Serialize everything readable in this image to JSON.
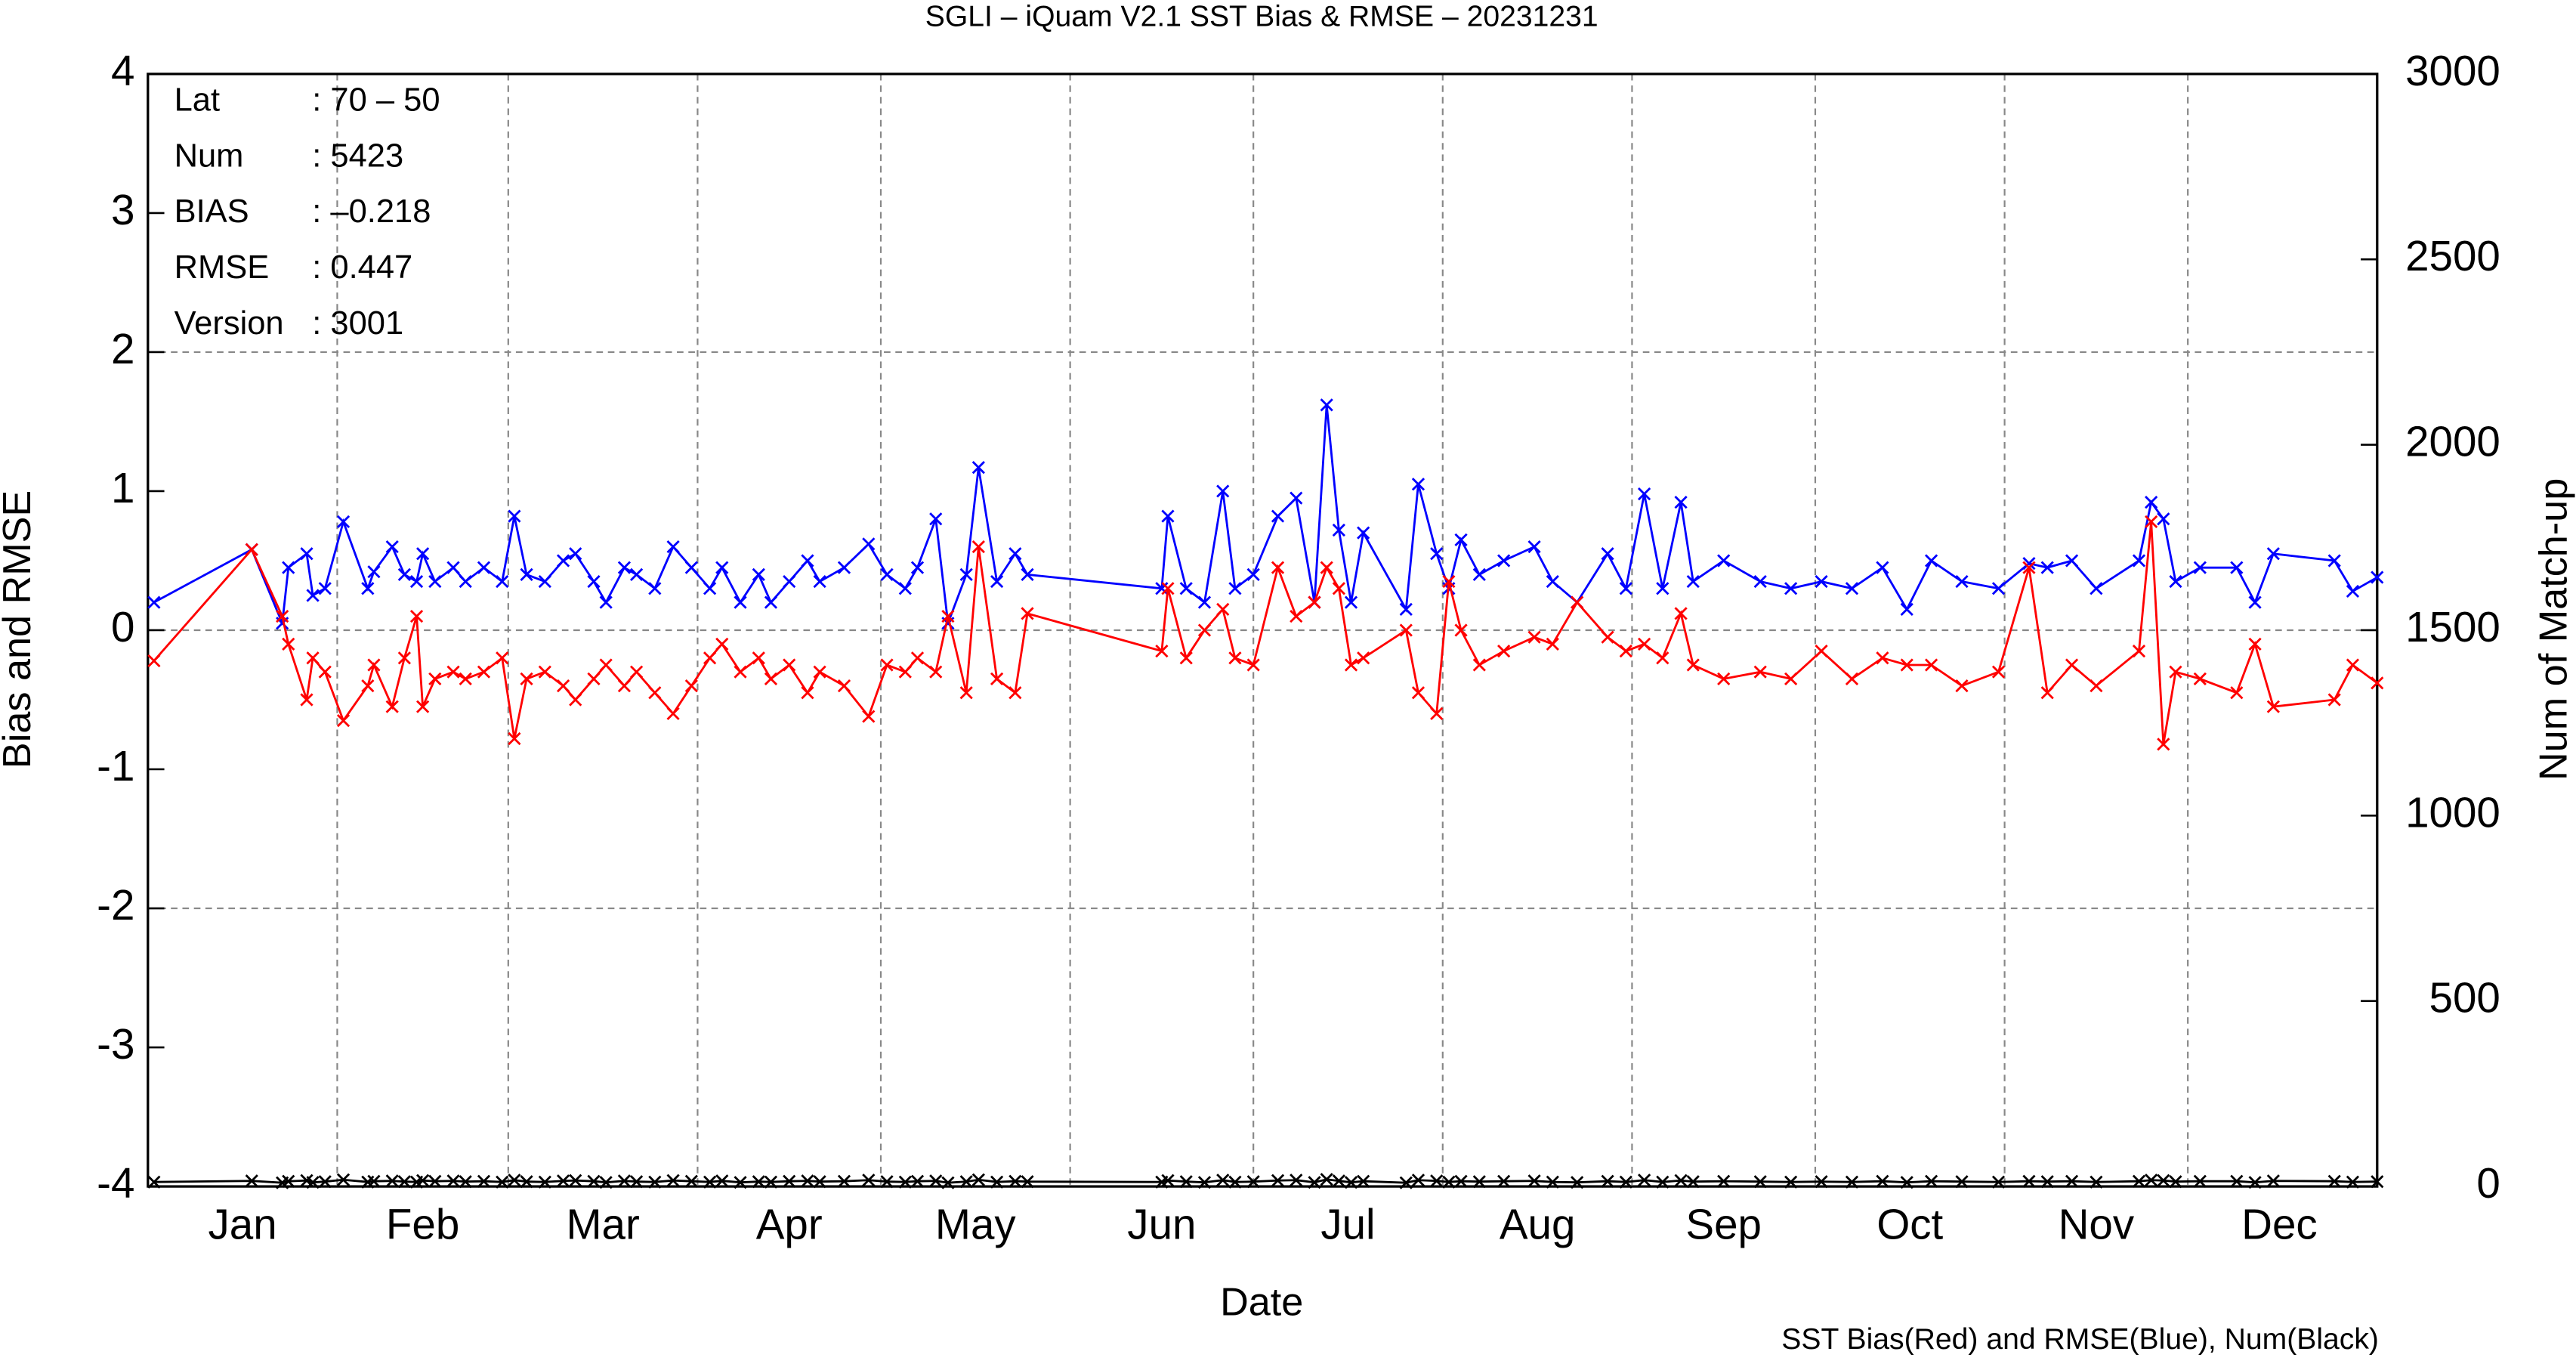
{
  "chart_data": {
    "type": "line",
    "title": "SGLI – iQuam V2.1 SST Bias & RMSE  – 20231231",
    "xlabel": "Date",
    "ylabel": "Bias and RMSE",
    "y2label": "Num of Match-up",
    "footnote": "SST Bias(Red) and RMSE(Blue), Num(Black)",
    "stats": [
      {
        "label": "Lat",
        "value": ": 70 – 50"
      },
      {
        "label": "Num",
        "value": ": 5423"
      },
      {
        "label": "BIAS",
        "value": ": –0.218"
      },
      {
        "label": "RMSE",
        "value": ": 0.447"
      },
      {
        "label": "Version",
        "value": ": 3001"
      }
    ],
    "xlim": [
      0,
      365
    ],
    "xticks": [
      {
        "value": 15.5,
        "label": "Jan"
      },
      {
        "value": 45,
        "label": "Feb"
      },
      {
        "value": 74.5,
        "label": "Mar"
      },
      {
        "value": 105,
        "label": "Apr"
      },
      {
        "value": 135.5,
        "label": "May"
      },
      {
        "value": 166,
        "label": "Jun"
      },
      {
        "value": 196.5,
        "label": "Jul"
      },
      {
        "value": 227.5,
        "label": "Aug"
      },
      {
        "value": 258,
        "label": "Sep"
      },
      {
        "value": 288.5,
        "label": "Oct"
      },
      {
        "value": 319,
        "label": "Nov"
      },
      {
        "value": 349,
        "label": "Dec"
      }
    ],
    "xgrid": [
      31,
      59,
      90,
      120,
      151,
      181,
      212,
      243,
      273,
      304,
      334
    ],
    "ylim": [
      -4,
      4
    ],
    "yticks": [
      -4,
      -3,
      -2,
      -1,
      0,
      1,
      2,
      3,
      4
    ],
    "ygrid": [
      -2,
      0,
      2
    ],
    "y2lim": [
      0,
      3000
    ],
    "y2ticks": [
      0,
      500,
      1000,
      1500,
      2000,
      2500,
      3000
    ],
    "x": [
      1,
      17,
      22,
      23,
      26,
      27,
      29,
      32,
      36,
      37,
      40,
      42,
      44,
      45,
      47,
      50,
      52,
      55,
      58,
      60,
      62,
      65,
      68,
      70,
      73,
      75,
      78,
      80,
      83,
      86,
      89,
      92,
      94,
      97,
      100,
      102,
      105,
      108,
      110,
      114,
      118,
      121,
      124,
      126,
      129,
      131,
      134,
      136,
      139,
      142,
      144,
      166,
      167,
      170,
      173,
      176,
      178,
      181,
      185,
      188,
      191,
      193,
      195,
      197,
      199,
      206,
      208,
      211,
      213,
      215,
      218,
      222,
      227,
      230,
      234,
      239,
      242,
      245,
      248,
      251,
      253,
      258,
      264,
      269,
      274,
      279,
      284,
      288,
      292,
      297,
      303,
      308,
      311,
      315,
      319,
      326,
      328,
      330,
      332,
      336,
      342,
      345,
      348,
      358,
      361,
      365
    ],
    "series": [
      {
        "name": "RMSE",
        "color": "#0000ff",
        "values": [
          0.2,
          0.58,
          0.05,
          0.45,
          0.55,
          0.25,
          0.3,
          0.78,
          0.3,
          0.42,
          0.6,
          0.4,
          0.35,
          0.55,
          0.35,
          0.45,
          0.35,
          0.45,
          0.35,
          0.82,
          0.4,
          0.35,
          0.5,
          0.55,
          0.35,
          0.2,
          0.45,
          0.4,
          0.3,
          0.6,
          0.45,
          0.3,
          0.45,
          0.2,
          0.4,
          0.2,
          0.35,
          0.5,
          0.35,
          0.45,
          0.62,
          0.4,
          0.3,
          0.45,
          0.8,
          0.05,
          0.4,
          1.17,
          0.35,
          0.55,
          0.4,
          0.3,
          0.82,
          0.3,
          0.2,
          1.0,
          0.3,
          0.4,
          0.82,
          0.95,
          0.2,
          1.62,
          0.72,
          0.2,
          0.7,
          0.15,
          1.05,
          0.55,
          0.3,
          0.65,
          0.4,
          0.5,
          0.6,
          0.35,
          0.2,
          0.55,
          0.3,
          0.98,
          0.3,
          0.92,
          0.35,
          0.5,
          0.35,
          0.3,
          0.35,
          0.3,
          0.45,
          0.15,
          0.5,
          0.35,
          0.3,
          0.48,
          0.45,
          0.5,
          0.3,
          0.5,
          0.92,
          0.8,
          0.35,
          0.45,
          0.45,
          0.2,
          0.55,
          0.5,
          0.28,
          0.38
        ]
      },
      {
        "name": "Bias",
        "color": "#ff0000",
        "values": [
          -0.22,
          0.58,
          0.1,
          -0.1,
          -0.5,
          -0.2,
          -0.3,
          -0.65,
          -0.4,
          -0.25,
          -0.55,
          -0.2,
          0.1,
          -0.55,
          -0.35,
          -0.3,
          -0.35,
          -0.3,
          -0.2,
          -0.78,
          -0.35,
          -0.3,
          -0.4,
          -0.5,
          -0.35,
          -0.25,
          -0.4,
          -0.3,
          -0.45,
          -0.6,
          -0.4,
          -0.2,
          -0.1,
          -0.3,
          -0.2,
          -0.35,
          -0.25,
          -0.45,
          -0.3,
          -0.4,
          -0.62,
          -0.25,
          -0.3,
          -0.2,
          -0.3,
          0.1,
          -0.45,
          0.6,
          -0.35,
          -0.45,
          0.12,
          -0.15,
          0.3,
          -0.2,
          0.0,
          0.15,
          -0.2,
          -0.25,
          0.45,
          0.1,
          0.2,
          0.45,
          0.3,
          -0.25,
          -0.2,
          0.0,
          -0.45,
          -0.6,
          0.35,
          0.0,
          -0.25,
          -0.15,
          -0.05,
          -0.1,
          0.2,
          -0.05,
          -0.15,
          -0.1,
          -0.2,
          0.12,
          -0.25,
          -0.35,
          -0.3,
          -0.35,
          -0.15,
          -0.35,
          -0.2,
          -0.25,
          -0.25,
          -0.4,
          -0.3,
          0.45,
          -0.45,
          -0.25,
          -0.4,
          -0.15,
          0.78,
          -0.82,
          -0.3,
          -0.35,
          -0.45,
          -0.1,
          -0.55,
          -0.5,
          -0.25,
          -0.38
        ]
      },
      {
        "name": "Num",
        "color": "#000000",
        "axis": "y2",
        "values": [
          12,
          15,
          10,
          14,
          16,
          11,
          13,
          18,
          12,
          14,
          15,
          13,
          12,
          16,
          14,
          15,
          13,
          14,
          12,
          17,
          13,
          12,
          15,
          16,
          14,
          11,
          15,
          13,
          12,
          16,
          14,
          12,
          15,
          11,
          13,
          12,
          14,
          15,
          13,
          14,
          17,
          13,
          12,
          14,
          15,
          10,
          13,
          18,
          12,
          14,
          13,
          12,
          16,
          13,
          11,
          17,
          12,
          13,
          16,
          17,
          11,
          19,
          15,
          11,
          14,
          10,
          17,
          15,
          12,
          14,
          13,
          14,
          15,
          12,
          11,
          14,
          12,
          17,
          12,
          16,
          13,
          14,
          13,
          12,
          13,
          12,
          14,
          11,
          14,
          13,
          12,
          14,
          13,
          14,
          12,
          14,
          17,
          16,
          13,
          14,
          14,
          11,
          15,
          14,
          12,
          13
        ]
      }
    ]
  }
}
